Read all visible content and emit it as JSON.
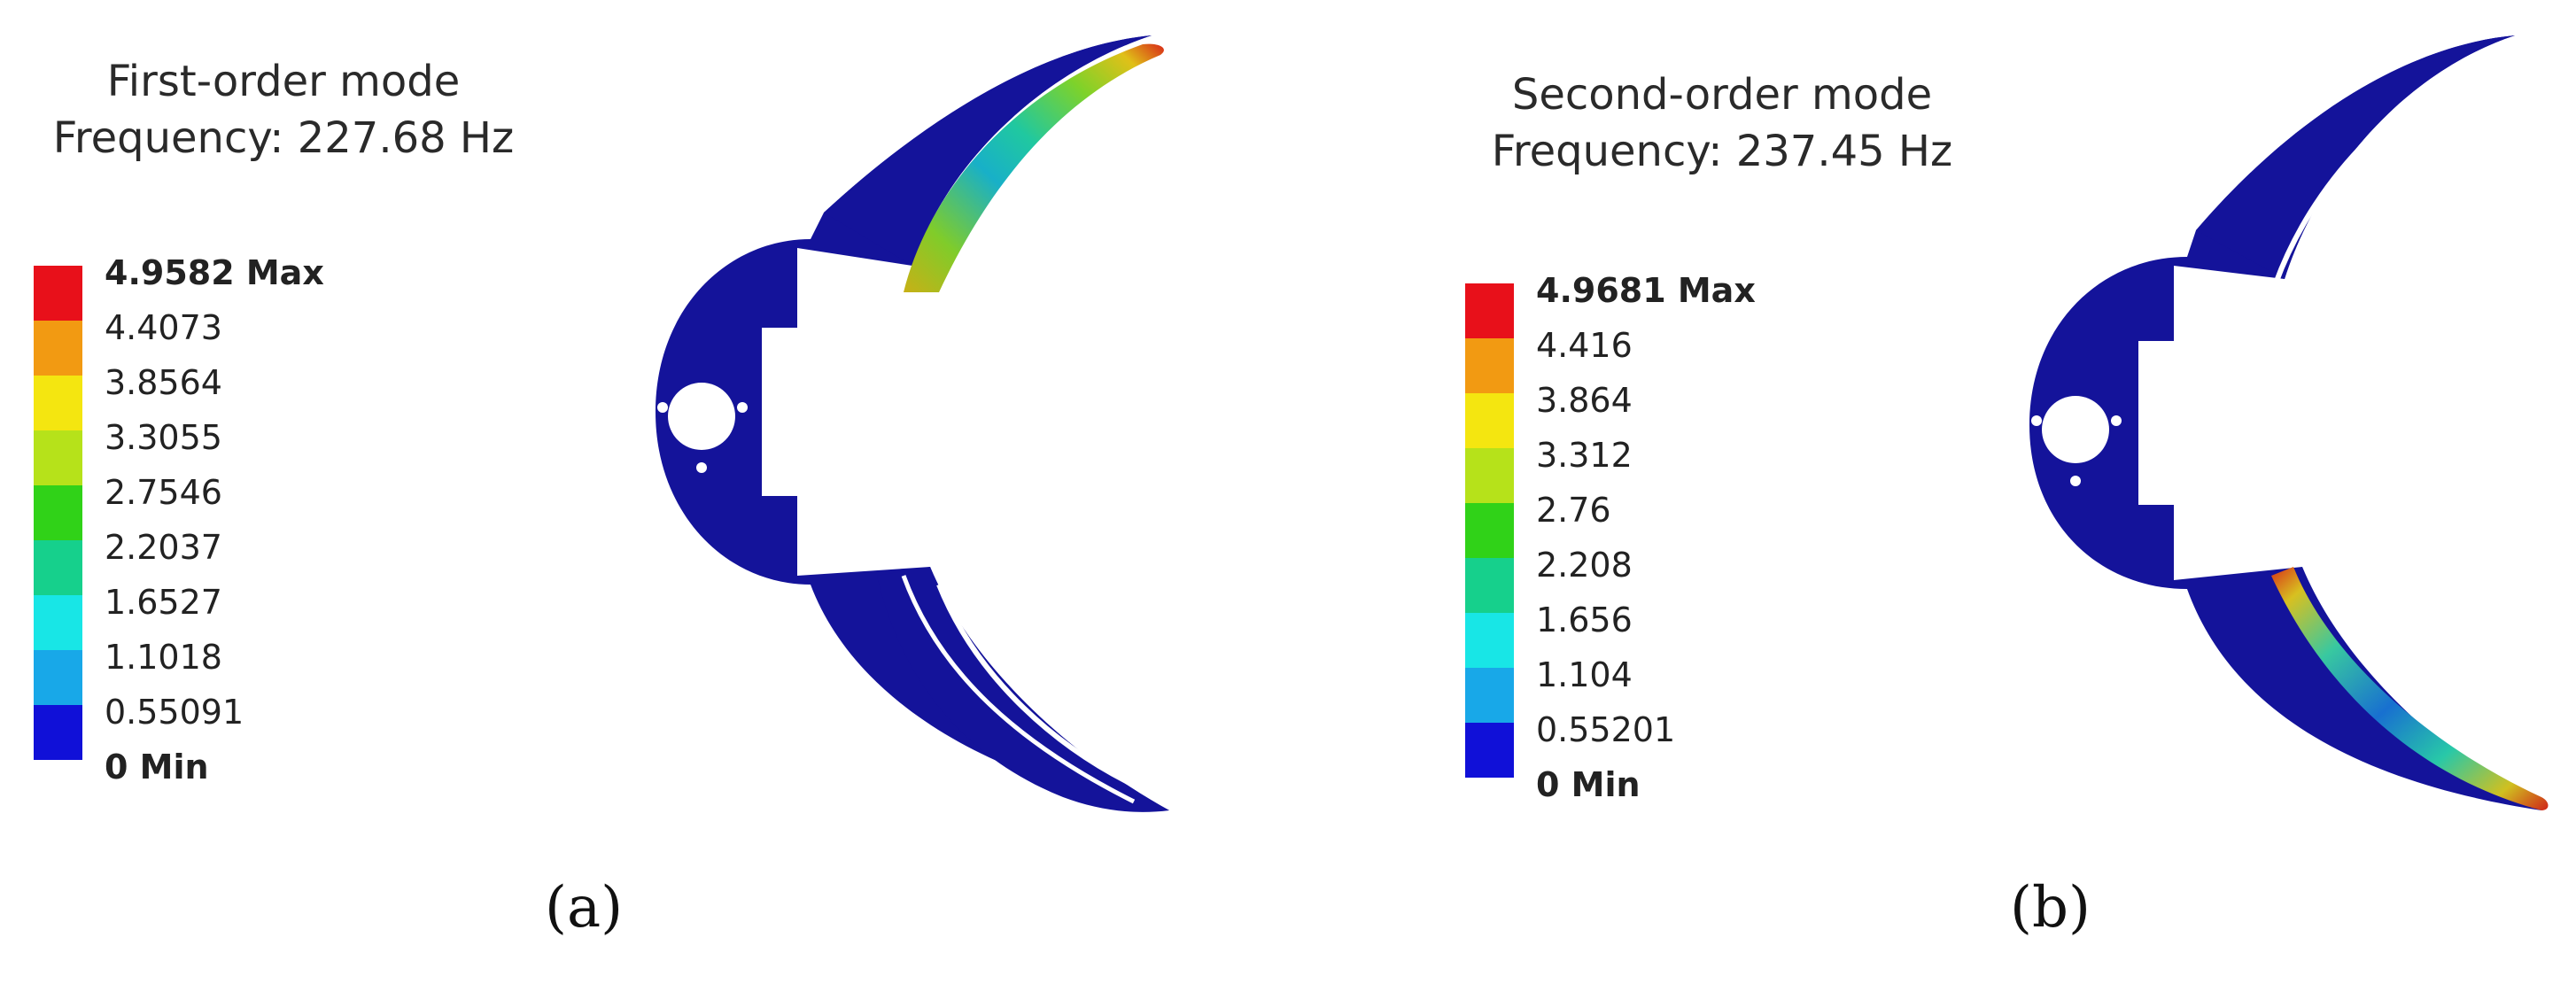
{
  "panels": [
    {
      "caption": "(a)",
      "title_line1": "First-order mode",
      "title_line2": "Frequency: 227.68 Hz",
      "legend": {
        "labels": [
          "4.9582 Max",
          "4.4073",
          "3.8564",
          "3.3055",
          "2.7546",
          "2.2037",
          "1.6527",
          "1.1018",
          "0.55091",
          "0 Min"
        ],
        "colors": [
          "#e8101a",
          "#f29a12",
          "#f4e610",
          "#b6e21a",
          "#30d218",
          "#16d08c",
          "#18e6e6",
          "#18a8e8",
          "#1010d8"
        ]
      },
      "deformed_arm": "upper"
    },
    {
      "caption": "(b)",
      "title_line1": "Second-order mode",
      "title_line2": "Frequency: 237.45 Hz",
      "legend": {
        "labels": [
          "4.9681 Max",
          "4.416",
          "3.864",
          "3.312",
          "2.76",
          "2.208",
          "1.656",
          "1.104",
          "0.55201",
          "0 Min"
        ],
        "colors": [
          "#e8101a",
          "#f29a12",
          "#f4e610",
          "#b6e21a",
          "#30d218",
          "#16d08c",
          "#18e6e6",
          "#18a8e8",
          "#1010d8"
        ]
      },
      "deformed_arm": "lower"
    }
  ]
}
